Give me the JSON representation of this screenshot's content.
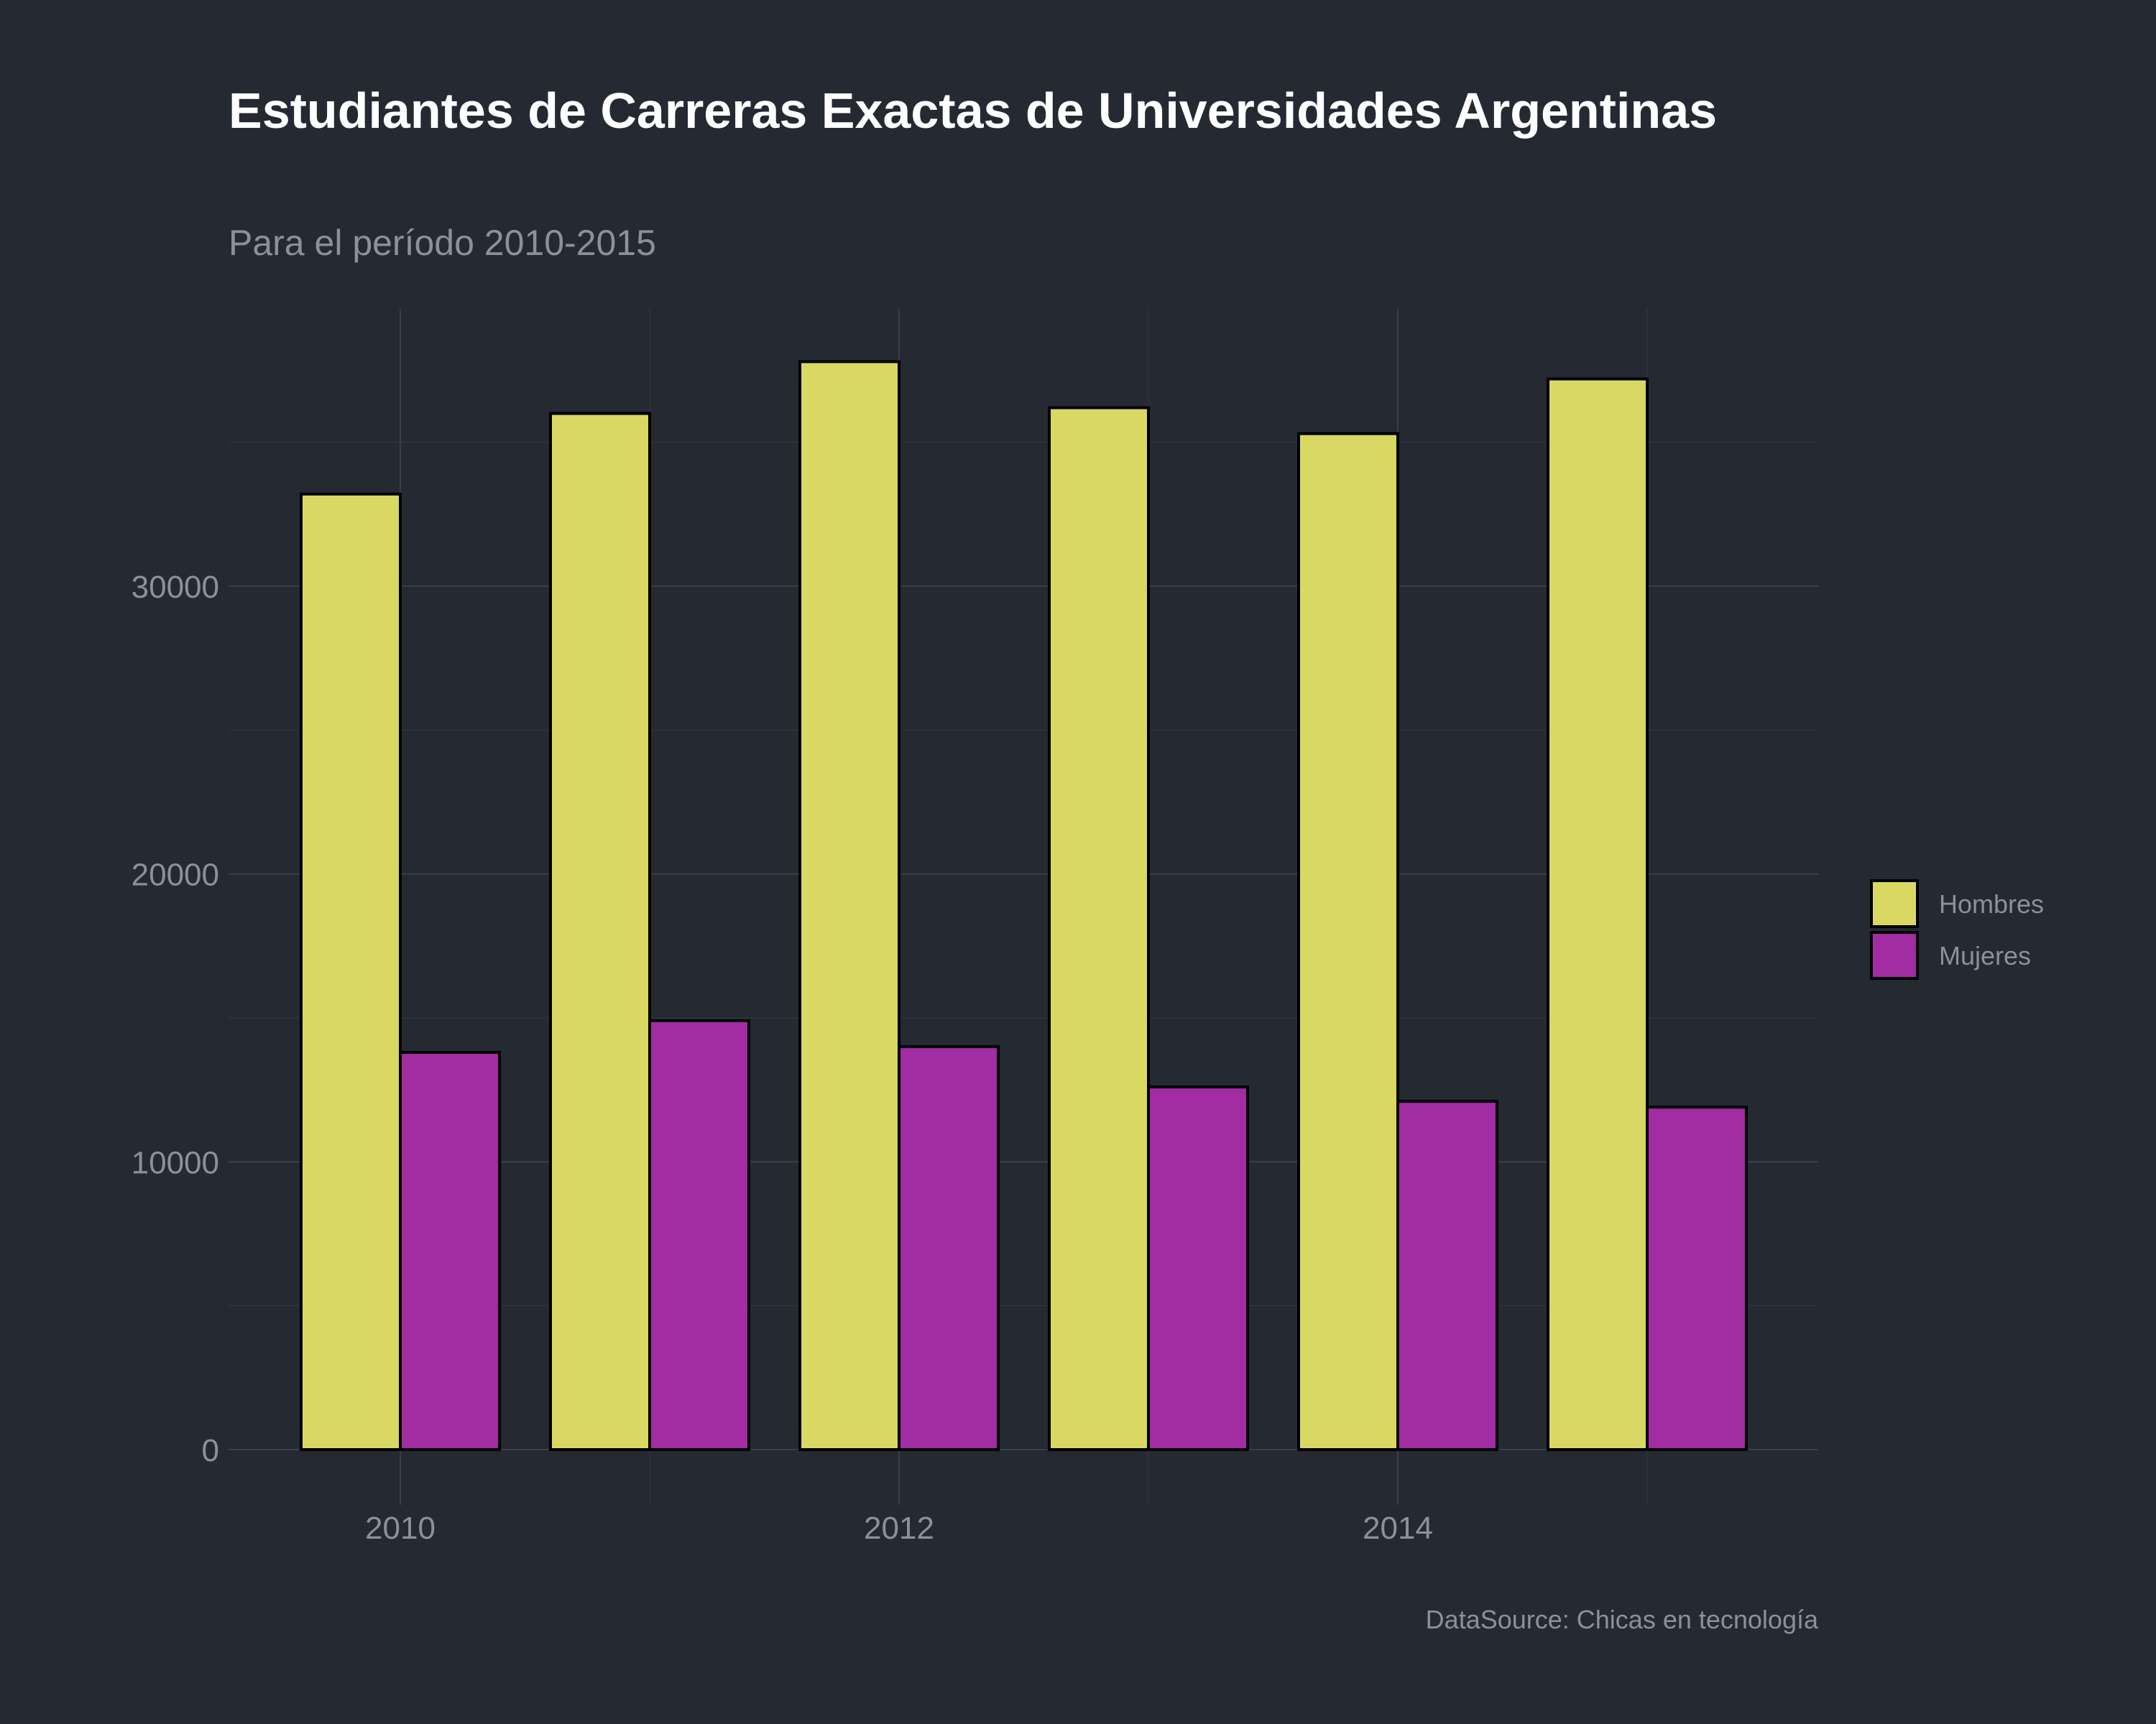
{
  "chart_data": {
    "type": "bar",
    "title": "Estudiantes de Carreras Exactas de Universidades Argentinas",
    "subtitle": "Para el período 2010-2015",
    "caption": "DataSource: Chicas en tecnología",
    "xlabel": "",
    "ylabel": "",
    "x": [
      2010,
      2011,
      2012,
      2013,
      2014,
      2015
    ],
    "x_tick_labels": [
      "2010",
      "2012",
      "2014"
    ],
    "y_ticks": [
      0,
      10000,
      20000,
      30000
    ],
    "y_tick_labels": [
      "0",
      "10000",
      "20000",
      "30000"
    ],
    "ylim": [
      0,
      39500
    ],
    "grid": true,
    "legend_position": "right",
    "series": [
      {
        "name": "Hombres",
        "color": "#d9d862",
        "values": [
          33200,
          36000,
          37800,
          36200,
          35300,
          37200
        ]
      },
      {
        "name": "Mujeres",
        "color": "#a22ca2",
        "values": [
          13800,
          14900,
          14000,
          12600,
          12100,
          11900
        ]
      }
    ]
  }
}
